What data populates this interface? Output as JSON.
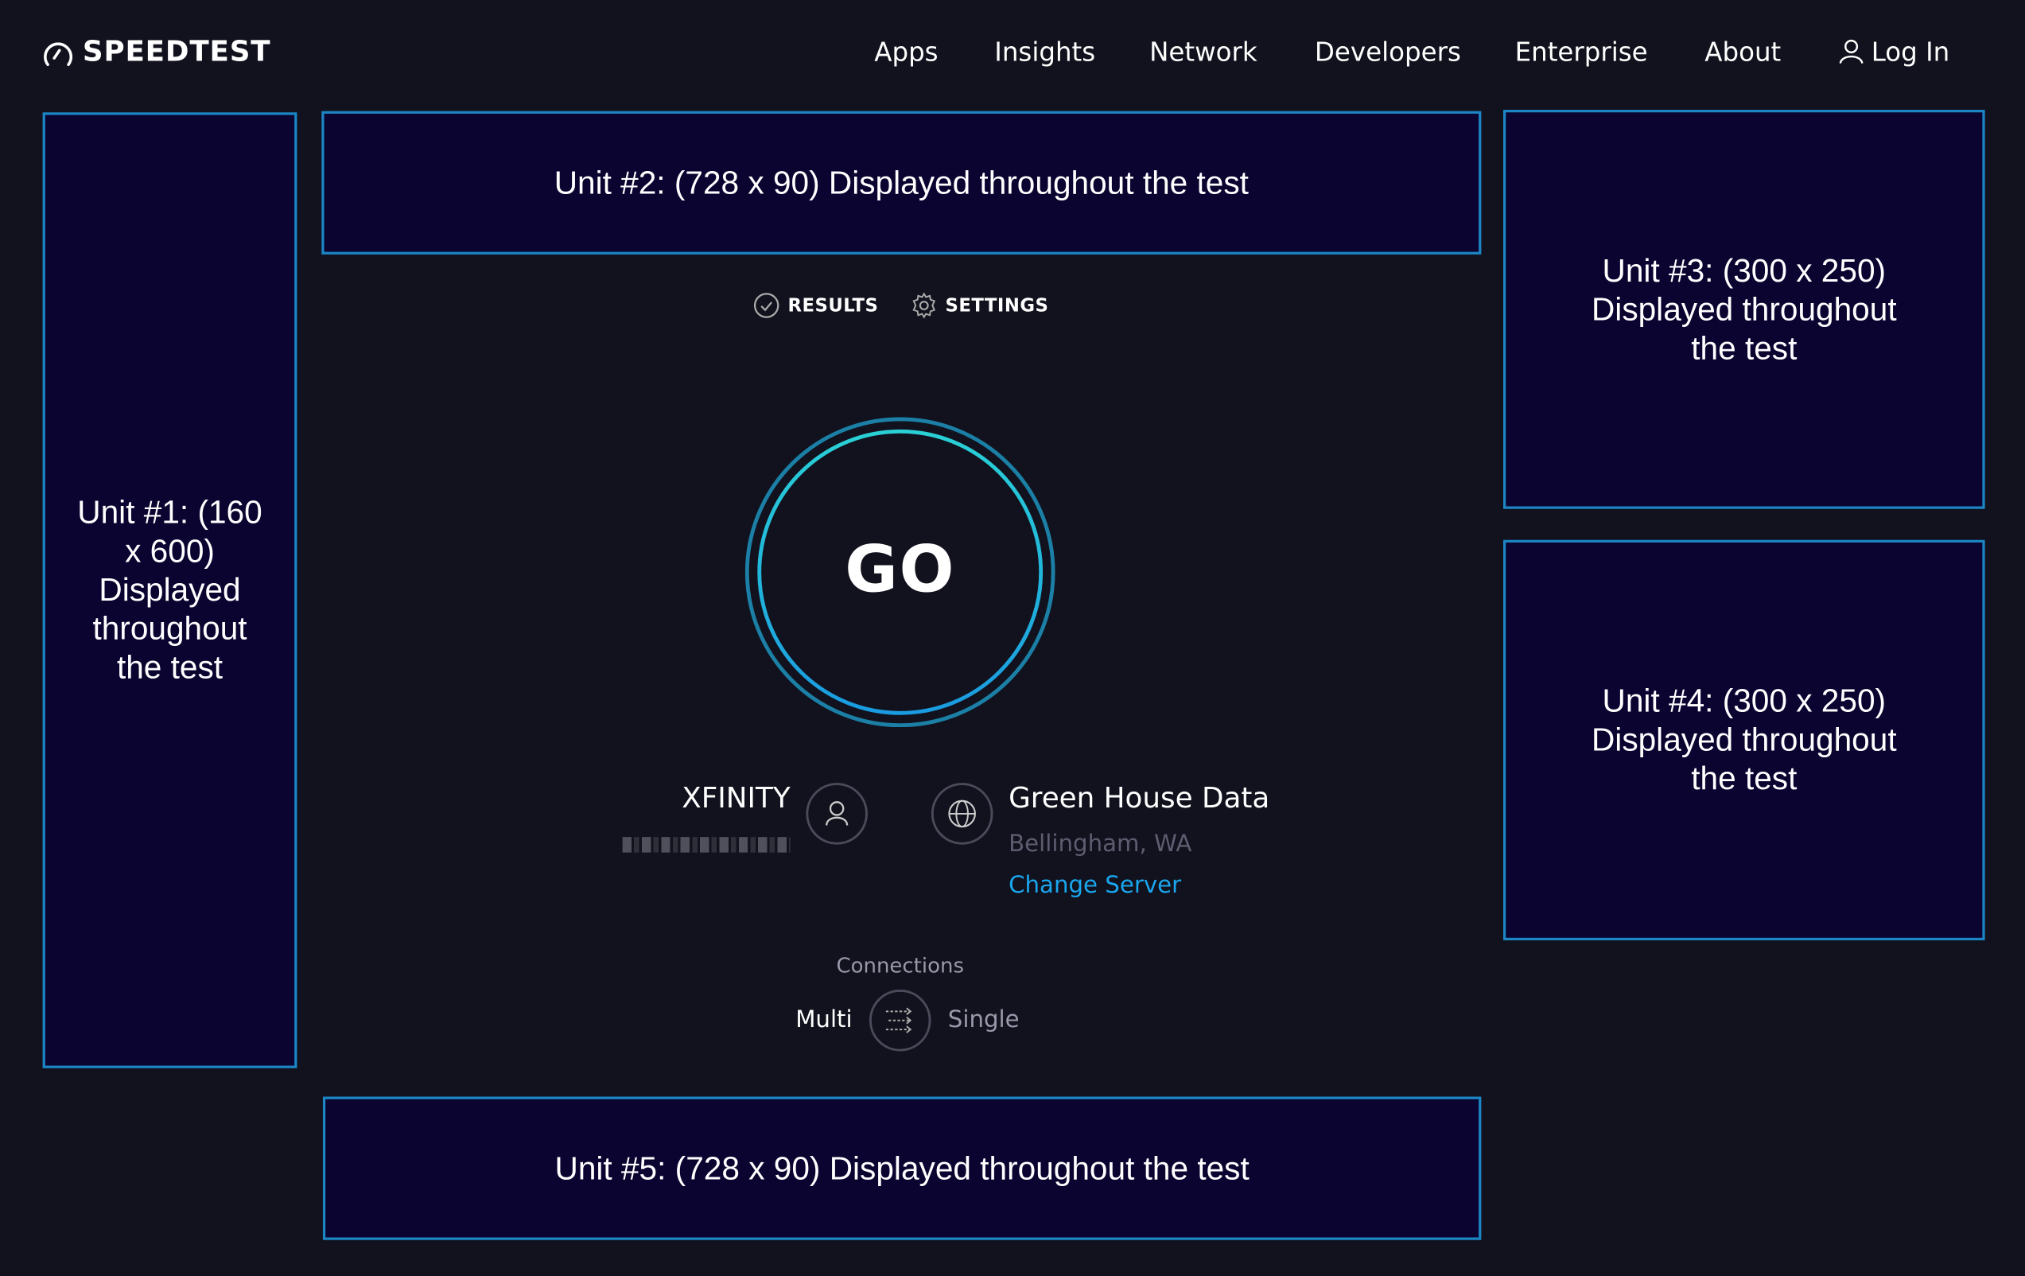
{
  "header": {
    "brand": "SPEEDTEST",
    "nav": [
      "Apps",
      "Insights",
      "Network",
      "Developers",
      "Enterprise",
      "About"
    ],
    "login": "Log In"
  },
  "ads": {
    "unit1": "Unit #1: (160 x 600) Displayed throughout the test",
    "unit2": "Unit #2: (728 x 90) Displayed throughout the test",
    "unit3": "Unit #3: (300 x 250) Displayed throughout the test",
    "unit4": "Unit #4: (300 x 250) Displayed throughout the test",
    "unit5": "Unit #5: (728 x 90) Displayed throughout the test"
  },
  "tabs": {
    "results": "RESULTS",
    "settings": "SETTINGS"
  },
  "go_label": "GO",
  "isp": {
    "name": "XFINITY"
  },
  "server": {
    "name": "Green House Data",
    "location": "Bellingham, WA",
    "change": "Change Server"
  },
  "connections": {
    "label": "Connections",
    "multi": "Multi",
    "single": "Single",
    "selected": "Multi"
  },
  "colors": {
    "background": "#11121d",
    "ad_fill": "#0b0330",
    "ad_border": "#1c86c4",
    "link": "#1aa6ef",
    "go_ring_outer": "#1b7fa6",
    "go_ring_inner": "#2ad0d6"
  }
}
